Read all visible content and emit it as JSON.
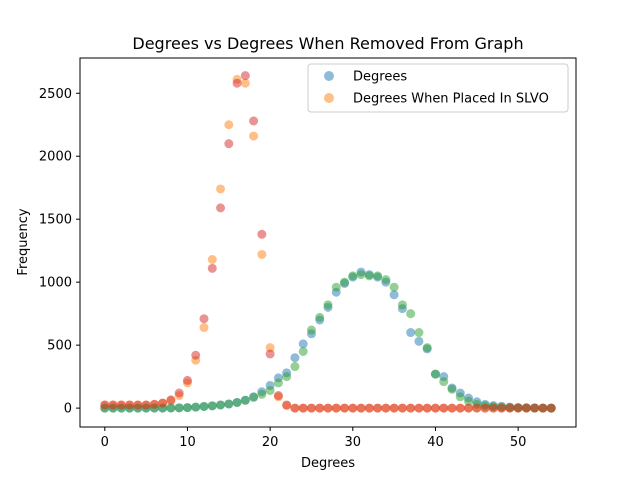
{
  "chart_data": {
    "type": "scatter",
    "title": "Degrees vs Degrees When Removed From Graph",
    "xlabel": "Degrees",
    "ylabel": "Frequency",
    "xlim": [
      -3,
      57
    ],
    "ylim": [
      -150,
      2780
    ],
    "xticks": [
      0,
      10,
      20,
      30,
      40,
      50
    ],
    "yticks": [
      0,
      500,
      1000,
      1500,
      2000,
      2500
    ],
    "legend_position": "top-right",
    "grid": false,
    "series": [
      {
        "name": "Degrees",
        "color": "#1f77b4",
        "x": [
          0,
          1,
          2,
          3,
          4,
          5,
          6,
          7,
          8,
          9,
          10,
          11,
          12,
          13,
          14,
          15,
          16,
          17,
          18,
          19,
          20,
          21,
          22,
          23,
          24,
          25,
          26,
          27,
          28,
          29,
          30,
          31,
          32,
          33,
          34,
          35,
          36,
          37,
          38,
          39,
          40,
          41,
          42,
          43,
          44,
          45,
          46,
          47,
          48,
          49,
          50,
          51,
          52,
          53,
          54
        ],
        "y": [
          0,
          0,
          0,
          0,
          0,
          0,
          0,
          0,
          1,
          2,
          4,
          8,
          13,
          18,
          25,
          33,
          45,
          62,
          90,
          130,
          180,
          240,
          280,
          400,
          510,
          590,
          700,
          800,
          920,
          990,
          1040,
          1080,
          1060,
          1040,
          1000,
          900,
          790,
          600,
          530,
          470,
          270,
          250,
          160,
          120,
          80,
          50,
          30,
          20,
          15,
          8,
          5,
          3,
          2,
          1,
          0
        ]
      },
      {
        "name": "Degrees When Placed In SLVO",
        "color": "#ff7f0e",
        "x": [
          0,
          1,
          2,
          3,
          4,
          5,
          6,
          7,
          8,
          9,
          10,
          11,
          12,
          13,
          14,
          15,
          16,
          17,
          18,
          19,
          20,
          21,
          22,
          23,
          24,
          25,
          26,
          27,
          28,
          29,
          30,
          31,
          32,
          33,
          34,
          35,
          36,
          37,
          38,
          39,
          40,
          41,
          42,
          43,
          44,
          45,
          46,
          47,
          48,
          49,
          50,
          51,
          52,
          53,
          54
        ],
        "y": [
          25,
          25,
          25,
          25,
          25,
          25,
          30,
          40,
          60,
          100,
          200,
          380,
          640,
          1180,
          1740,
          2250,
          2610,
          2580,
          2160,
          1220,
          480,
          90,
          20,
          0,
          0,
          0,
          0,
          0,
          0,
          0,
          0,
          0,
          0,
          0,
          0,
          0,
          0,
          0,
          0,
          0,
          0,
          0,
          0,
          0,
          0,
          0,
          0,
          0,
          0,
          0,
          0,
          0,
          0,
          0,
          0
        ]
      },
      {
        "name": "",
        "color": "#2ca02c",
        "x": [
          0,
          1,
          2,
          3,
          4,
          5,
          6,
          7,
          8,
          9,
          10,
          11,
          12,
          13,
          14,
          15,
          16,
          17,
          18,
          19,
          20,
          21,
          22,
          23,
          24,
          25,
          26,
          27,
          28,
          29,
          30,
          31,
          32,
          33,
          34,
          35,
          36,
          37,
          38,
          39,
          40,
          41,
          42,
          43,
          44,
          45,
          46,
          47,
          48,
          49,
          50,
          51,
          52,
          53,
          54
        ],
        "y": [
          0,
          0,
          0,
          0,
          0,
          0,
          0,
          0,
          1,
          2,
          4,
          8,
          13,
          18,
          25,
          33,
          45,
          62,
          85,
          110,
          140,
          200,
          250,
          330,
          450,
          620,
          720,
          820,
          960,
          1000,
          1050,
          1060,
          1050,
          1050,
          1020,
          960,
          820,
          750,
          600,
          480,
          270,
          210,
          150,
          90,
          55,
          30,
          20,
          12,
          8,
          5,
          3,
          2,
          1,
          0,
          0
        ]
      },
      {
        "name": "",
        "color": "#d62728",
        "x": [
          0,
          1,
          2,
          3,
          4,
          5,
          6,
          7,
          8,
          9,
          10,
          11,
          12,
          13,
          14,
          15,
          16,
          17,
          18,
          19,
          20,
          21,
          22,
          23,
          24,
          25,
          26,
          27,
          28,
          29,
          30,
          31,
          32,
          33,
          34,
          35,
          36,
          37,
          38,
          39,
          40,
          41,
          42,
          43,
          44,
          45,
          46,
          47,
          48,
          49,
          50,
          51,
          52,
          53,
          54
        ],
        "y": [
          25,
          25,
          25,
          25,
          25,
          25,
          30,
          40,
          65,
          120,
          220,
          420,
          710,
          1110,
          1590,
          2100,
          2580,
          2640,
          2280,
          1380,
          430,
          100,
          25,
          0,
          0,
          0,
          0,
          0,
          0,
          0,
          0,
          0,
          0,
          0,
          0,
          0,
          0,
          0,
          0,
          0,
          0,
          0,
          0,
          0,
          0,
          0,
          0,
          0,
          0,
          0,
          0,
          0,
          0,
          0,
          0
        ]
      }
    ]
  }
}
